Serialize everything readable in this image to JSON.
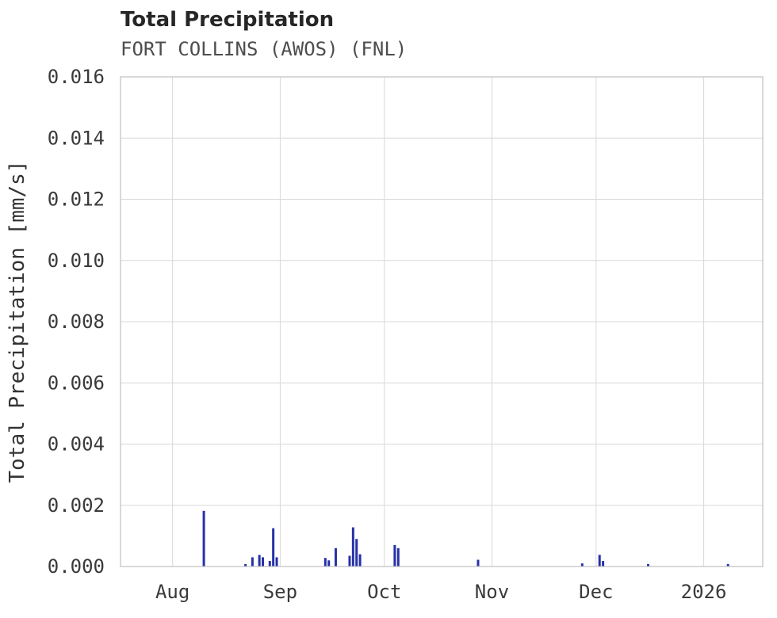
{
  "chart": {
    "title": "Total Precipitation",
    "subtitle": "FORT COLLINS (AWOS) (FNL)"
  },
  "chart_data": {
    "type": "bar",
    "title": "Total Precipitation",
    "subtitle": "FORT COLLINS (AWOS) (FNL)",
    "xlabel": "",
    "ylabel": "Total Precipitation [mm/s]",
    "ylim": [
      0,
      0.016
    ],
    "xlim": [
      "2025-07-17",
      "2026-01-18"
    ],
    "grid": true,
    "legend": "none",
    "colors": {
      "bar": "#2731a8",
      "grid": "#d8d8d8",
      "spine": "#cccccc",
      "tick_label": "#3a3a3a",
      "axis_label": "#333333",
      "title": "#262626",
      "subtitle": "#4d4d4d",
      "background": "#ffffff"
    },
    "yticks": [
      {
        "label": "0.000",
        "value": 0.0
      },
      {
        "label": "0.002",
        "value": 0.002
      },
      {
        "label": "0.004",
        "value": 0.004
      },
      {
        "label": "0.006",
        "value": 0.006
      },
      {
        "label": "0.008",
        "value": 0.008
      },
      {
        "label": "0.010",
        "value": 0.01
      },
      {
        "label": "0.012",
        "value": 0.012
      },
      {
        "label": "0.014",
        "value": 0.014
      },
      {
        "label": "0.016",
        "value": 0.016
      }
    ],
    "xticks": [
      {
        "label": "Aug",
        "date": "2025-08-01"
      },
      {
        "label": "Sep",
        "date": "2025-09-01"
      },
      {
        "label": "Oct",
        "date": "2025-10-01"
      },
      {
        "label": "Nov",
        "date": "2025-11-01"
      },
      {
        "label": "Dec",
        "date": "2025-12-01"
      },
      {
        "label": "2026",
        "date": "2026-01-01"
      }
    ],
    "points": [
      {
        "date": "2025-08-10",
        "value": 0.00182
      },
      {
        "date": "2025-08-22",
        "value": 8e-05
      },
      {
        "date": "2025-08-24",
        "value": 0.0003
      },
      {
        "date": "2025-08-26",
        "value": 0.00038
      },
      {
        "date": "2025-08-27",
        "value": 0.0003
      },
      {
        "date": "2025-08-29",
        "value": 0.00018
      },
      {
        "date": "2025-08-30",
        "value": 0.00125
      },
      {
        "date": "2025-08-31",
        "value": 0.0003
      },
      {
        "date": "2025-09-14",
        "value": 0.00028
      },
      {
        "date": "2025-09-15",
        "value": 0.0002
      },
      {
        "date": "2025-09-17",
        "value": 0.0006
      },
      {
        "date": "2025-09-21",
        "value": 0.00035
      },
      {
        "date": "2025-09-22",
        "value": 0.00128
      },
      {
        "date": "2025-09-23",
        "value": 0.0009
      },
      {
        "date": "2025-09-24",
        "value": 0.0004
      },
      {
        "date": "2025-10-04",
        "value": 0.0007
      },
      {
        "date": "2025-10-05",
        "value": 0.0006
      },
      {
        "date": "2025-10-28",
        "value": 0.00022
      },
      {
        "date": "2025-11-27",
        "value": 0.0001
      },
      {
        "date": "2025-12-02",
        "value": 0.00038
      },
      {
        "date": "2025-12-03",
        "value": 0.00018
      },
      {
        "date": "2025-12-16",
        "value": 8e-05
      },
      {
        "date": "2026-01-08",
        "value": 8e-05
      }
    ]
  }
}
